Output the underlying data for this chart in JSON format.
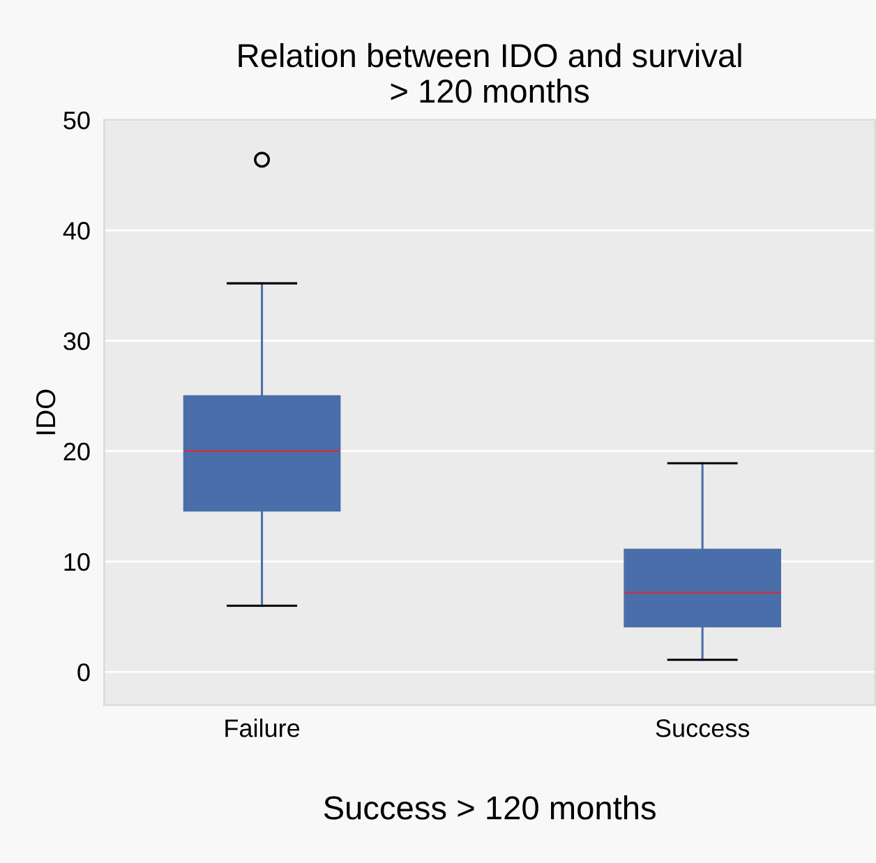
{
  "chart_data": {
    "type": "box",
    "title": "Relation between IDO and survival\n> 120 months",
    "xlabel": "Success > 120 months",
    "ylabel": "IDO",
    "categories": [
      "Failure",
      "Success"
    ],
    "boxes": [
      {
        "low": 6.0,
        "q1": 14.6,
        "median": 20.0,
        "q3": 25.0,
        "high": 35.2,
        "outliers": [
          46.4
        ]
      },
      {
        "low": 1.1,
        "q1": 4.1,
        "median": 7.2,
        "q3": 11.1,
        "high": 18.9
      }
    ],
    "color": "#4a6ea9",
    "ylim": [
      -3,
      50
    ],
    "yticks": [
      0,
      10,
      20,
      30,
      40,
      50
    ],
    "grid": "y"
  }
}
